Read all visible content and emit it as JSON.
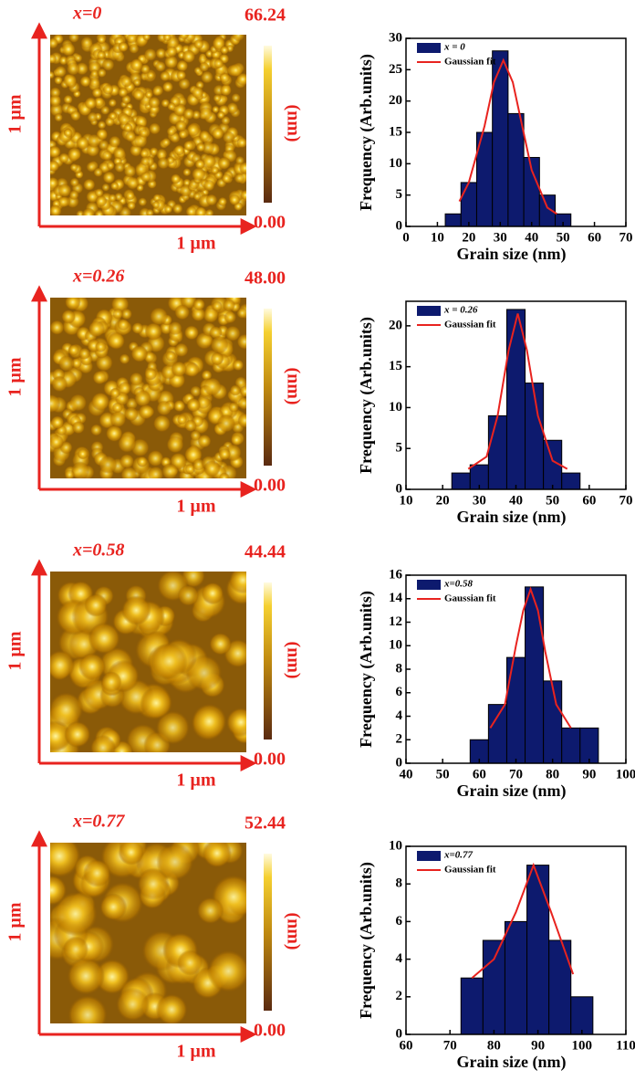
{
  "afm_images": [
    {
      "label": "x=0",
      "max": "66.24",
      "min": "0.00",
      "unit": "(nm)",
      "scale_x": "1 µm",
      "scale_y": "1 µm"
    },
    {
      "label": "x=0.26",
      "max": "48.00",
      "min": "0.00",
      "unit": "(nm)",
      "scale_x": "1 µm",
      "scale_y": "1 µm"
    },
    {
      "label": "x=0.58",
      "max": "44.44",
      "min": "0.00",
      "unit": "(nm)",
      "scale_x": "1 µm",
      "scale_y": "1 µm"
    },
    {
      "label": "x=0.77",
      "max": "52.44",
      "min": "0.00",
      "unit": "(nm)",
      "scale_x": "1 µm",
      "scale_y": "1 µm"
    }
  ],
  "chart_data": [
    {
      "type": "histogram",
      "xlabel": "Grain size (nm)",
      "ylabel": "Frequency (Arb.units)",
      "name": "x = 0",
      "color": "#0d1a6e",
      "bins": [
        12.5,
        17.5,
        22.5,
        27.5,
        32.5,
        37.5,
        42.5,
        47.5,
        52.5
      ],
      "values": [
        2,
        7,
        15,
        28,
        18,
        11,
        5,
        2
      ],
      "fit": {
        "name": "Gaussian fit",
        "color": "#e8231f",
        "x": [
          17,
          20,
          25,
          28,
          31,
          34,
          37,
          40,
          45,
          48
        ],
        "values": [
          4,
          7,
          16,
          23,
          26.5,
          23,
          16,
          9,
          3,
          2
        ]
      },
      "xlim": [
        0,
        70
      ],
      "xticks": [
        0,
        10,
        20,
        30,
        40,
        50,
        60,
        70
      ],
      "ylim": [
        0,
        30
      ],
      "yticks": [
        0,
        5,
        10,
        15,
        20,
        25,
        30
      ]
    },
    {
      "type": "histogram",
      "xlabel": "Grain size (nm)",
      "ylabel": "Frequency (Arb.units)",
      "name": "x = 0.26",
      "color": "#0d1a6e",
      "bins": [
        22.5,
        27.5,
        32.5,
        37.5,
        42.5,
        47.5,
        52.5,
        57.5
      ],
      "values": [
        2,
        3,
        9,
        22,
        13,
        6,
        2
      ],
      "fit": {
        "name": "Gaussian fit",
        "color": "#e8231f",
        "x": [
          27,
          32,
          35,
          38,
          40.5,
          43,
          46,
          50,
          54
        ],
        "values": [
          2.5,
          4,
          9,
          17,
          21.5,
          17,
          9,
          3.5,
          2.5
        ]
      },
      "xlim": [
        10,
        70
      ],
      "xticks": [
        10,
        20,
        30,
        40,
        50,
        60,
        70
      ],
      "ylim": [
        0,
        23
      ],
      "yticks": [
        0,
        5,
        10,
        15,
        20
      ]
    },
    {
      "type": "histogram",
      "xlabel": "Grain size (nm)",
      "ylabel": "Frequency (Arb.units)",
      "name": "x=0.58",
      "color": "#0d1a6e",
      "bins": [
        57.5,
        62.5,
        67.5,
        72.5,
        77.5,
        82.5,
        87.5,
        92.5
      ],
      "values": [
        2,
        5,
        9,
        15,
        7,
        3,
        3
      ],
      "fit": {
        "name": "Gaussian fit",
        "color": "#e8231f",
        "x": [
          63,
          67,
          70,
          72,
          74,
          76,
          78,
          81,
          85
        ],
        "values": [
          3,
          5,
          10,
          13,
          14.8,
          13,
          9.5,
          5,
          3
        ]
      },
      "xlim": [
        40,
        100
      ],
      "xticks": [
        40,
        50,
        60,
        70,
        80,
        90,
        100
      ],
      "ylim": [
        0,
        16
      ],
      "yticks": [
        0,
        2,
        4,
        6,
        8,
        10,
        12,
        14,
        16
      ]
    },
    {
      "type": "histogram",
      "xlabel": "Grain size (nm)",
      "ylabel": "Frequency (Arb.units)",
      "name": "x=0.77",
      "color": "#0d1a6e",
      "bins": [
        72.5,
        77.5,
        82.5,
        87.5,
        92.5,
        97.5,
        102.5
      ],
      "values": [
        3,
        5,
        6,
        9,
        5,
        2
      ],
      "fit": {
        "name": "Gaussian fit",
        "color": "#e8231f",
        "x": [
          75,
          80,
          85,
          89,
          93,
          98
        ],
        "values": [
          3,
          4,
          6.5,
          9,
          6.5,
          3.2
        ]
      },
      "xlim": [
        60,
        110
      ],
      "xticks": [
        60,
        70,
        80,
        90,
        100,
        110
      ],
      "ylim": [
        0,
        10
      ],
      "yticks": [
        0,
        2,
        4,
        6,
        8,
        10
      ]
    }
  ]
}
